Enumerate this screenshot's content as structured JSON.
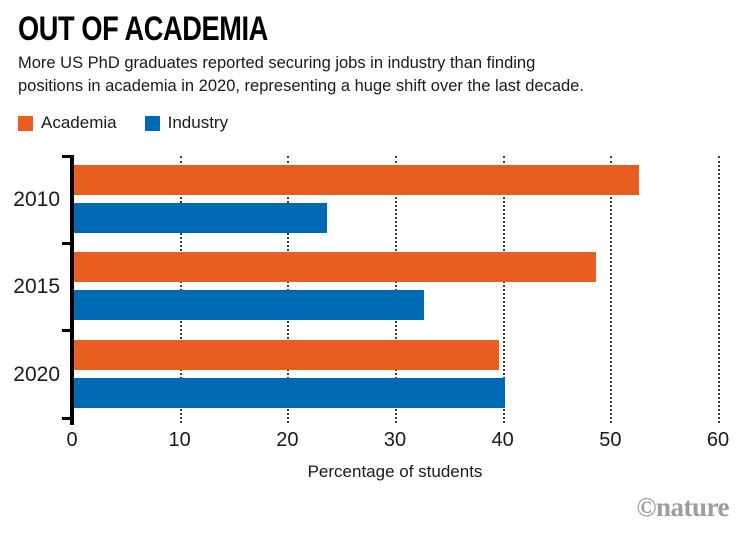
{
  "header": {
    "title": "OUT OF ACADEMIA",
    "subtitle_lines": [
      "More US PhD graduates reported securing jobs in industry than finding",
      "positions in academia in 2020, representing a huge shift over the last decade."
    ]
  },
  "legend": {
    "items": [
      {
        "label": "Academia",
        "color": "#E85E20"
      },
      {
        "label": "Industry",
        "color": "#0069B4"
      }
    ]
  },
  "chart_data": {
    "type": "bar",
    "orientation": "horizontal",
    "title": "OUT OF ACADEMIA",
    "categories": [
      "2010",
      "2015",
      "2020"
    ],
    "series": [
      {
        "name": "Academia",
        "color": "#E85E20",
        "values": [
          52.5,
          48.5,
          39.5
        ]
      },
      {
        "name": "Industry",
        "color": "#0069B4",
        "values": [
          23.5,
          32.5,
          40
        ]
      }
    ],
    "xlabel": "Percentage of students",
    "ylabel": "",
    "xlim": [
      0,
      60
    ],
    "xticks": [
      0,
      10,
      20,
      30,
      40,
      50,
      60
    ],
    "grid": "vertical-dotted",
    "legend_position": "top-left"
  },
  "watermark": {
    "text": "©nature"
  }
}
